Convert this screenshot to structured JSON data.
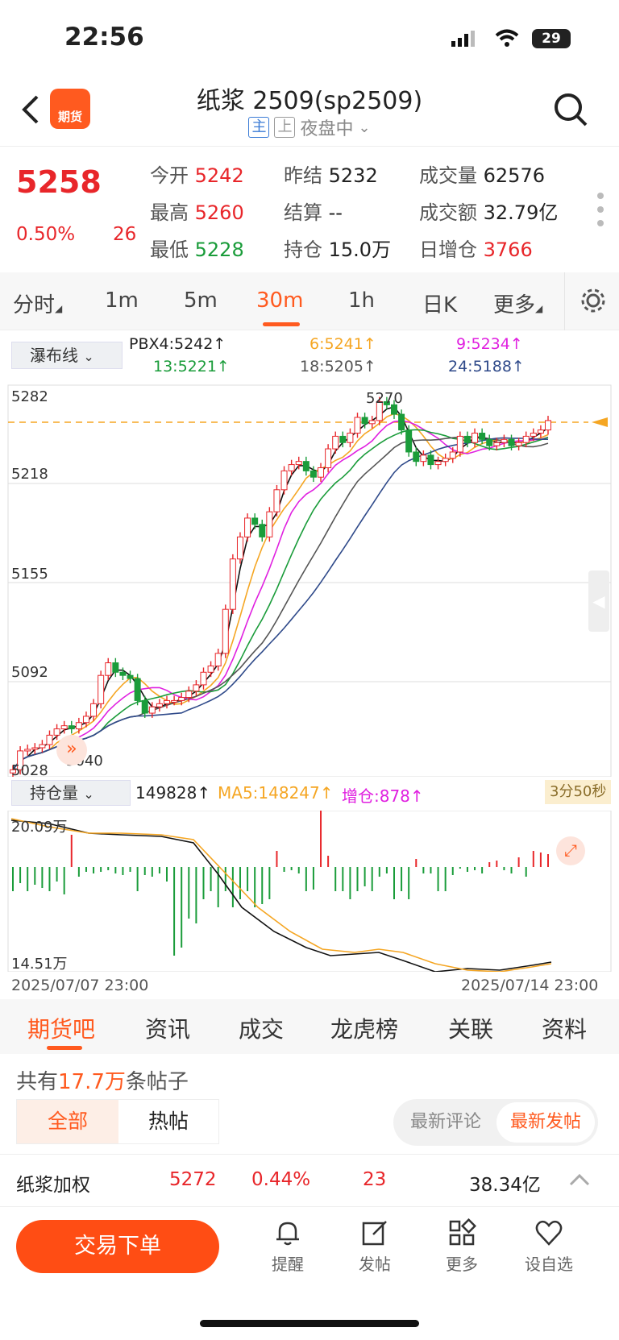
{
  "status": {
    "time": "22:56",
    "battery": "29"
  },
  "header": {
    "title": "纸浆 2509(sp2509)",
    "tag_main": "主",
    "tag_up": "上",
    "session": "夜盘中",
    "logo_text": "期货"
  },
  "quote": {
    "price": "5258",
    "pct": "0.50%",
    "change": "26",
    "open_label": "今开",
    "open": "5242",
    "prev_label": "昨结",
    "prev": "5232",
    "vol_label": "成交量",
    "vol": "62576",
    "high_label": "最高",
    "high": "5260",
    "settle_label": "结算",
    "settle": "--",
    "amount_label": "成交额",
    "amount": "32.79亿",
    "low_label": "最低",
    "low": "5228",
    "oi_label": "持仓",
    "oi": "15.0万",
    "oi_chg_label": "日增仓",
    "oi_chg": "3766"
  },
  "period_tabs": [
    "分时",
    "1m",
    "5m",
    "30m",
    "1h",
    "日K",
    "更多"
  ],
  "ma": {
    "selector": "瀑布线",
    "pbx4": "PBX4:5242↑",
    "l6": "6:5241↑",
    "l9": "9:5234↑",
    "l13": "13:5221↑",
    "l18": "18:5205↑",
    "l24": "24:5188↑"
  },
  "price_axis": [
    "5282",
    "5218",
    "5155",
    "5092",
    "5028"
  ],
  "annotations": {
    "high": "5270",
    "low": "5040"
  },
  "oi_panel": {
    "selector": "持仓量",
    "value": "149828↑",
    "ma5": "MA5:148247↑",
    "inc": "增仓:878↑",
    "timer": "3分50秒",
    "top": "20.09万",
    "bottom": "14.51万"
  },
  "dates": {
    "start": "2025/07/07 23:00",
    "end": "2025/07/14 23:00"
  },
  "sub_tabs": [
    "期货吧",
    "资讯",
    "成交",
    "龙虎榜",
    "关联",
    "资料"
  ],
  "posts": {
    "count_prefix": "共有",
    "count": "17.7万",
    "count_suffix": "条帖子",
    "filter_all": "全部",
    "filter_hot": "热帖",
    "sort_comment": "最新评论",
    "sort_post": "最新发帖"
  },
  "bottom_quote": {
    "name": "纸浆加权",
    "price": "5272",
    "pct": "0.44%",
    "change": "23",
    "amount": "38.34亿"
  },
  "toolbar": {
    "trade": "交易下单",
    "remind": "提醒",
    "post": "发帖",
    "more": "更多",
    "watch": "设自选"
  },
  "colors": {
    "up": "#e8262a",
    "down": "#1a9c3a",
    "accent": "#ff5a1f"
  }
}
